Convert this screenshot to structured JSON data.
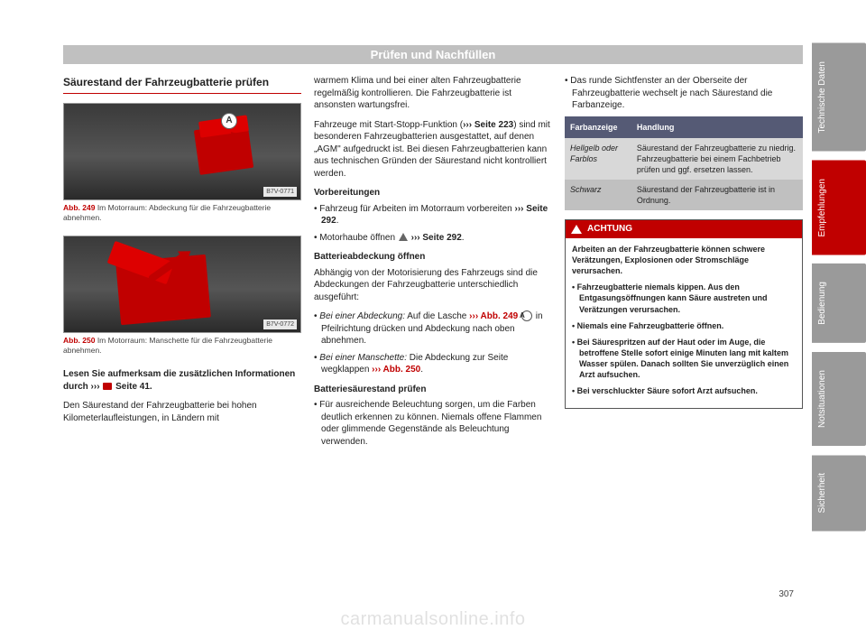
{
  "header": {
    "title": "Prüfen und Nachfüllen"
  },
  "col1": {
    "heading": "Säurestand der Fahrzeugbatterie prüfen",
    "fig1": {
      "num": "Abb. 249",
      "text": "Im Motorraum: Abdeckung für die Fahrzeugbatterie abnehmen.",
      "tag": "B7V-0771",
      "marker": "A"
    },
    "fig2": {
      "num": "Abb. 250",
      "text": "Im Motorraum: Manschette für die Fahrzeugbatterie abnehmen.",
      "tag": "B7V-0772"
    },
    "read_carefully_1": "Lesen Sie aufmerksam die zusätzlichen Informationen durch ››› ",
    "read_carefully_2": " Seite 41.",
    "p2": "Den Säurestand der Fahrzeugbatterie bei hohen Kilometerlaufleistungen, in Ländern mit"
  },
  "col2": {
    "p1": "warmem Klima und bei einer alten Fahrzeugbatterie regelmäßig kontrollieren. Die Fahrzeugbatterie ist ansonsten wartungsfrei.",
    "p2a": "Fahrzeuge mit Start-Stopp-Funktion (",
    "p2b": "››› Seite 223",
    "p2c": ") sind mit besonderen Fahrzeugbatterien ausgestattet, auf denen „AGM\" aufgedruckt ist. Bei diesen Fahrzeugbatterien kann aus technischen Gründen der Säurestand nicht kontrolliert werden.",
    "sub1": "Vorbereitungen",
    "b1a": "Fahrzeug für Arbeiten im Motorraum vorbereiten ",
    "b1b": "››› Seite 292",
    "b1c": ".",
    "b2a": "Motorhaube öffnen ",
    "b2b": " ››› Seite 292",
    "b2c": ".",
    "sub2": "Batterieabdeckung öffnen",
    "p3": "Abhängig von der Motorisierung des Fahrzeugs sind die Abdeckungen der Fahrzeugbatterie unterschiedlich ausgeführt:",
    "b3a": "Bei einer Abdeckung:",
    "b3b": " Auf die Lasche ",
    "b3c": "››› Abb. 249",
    "b3d": " in Pfeilrichtung drücken und Abdeckung nach oben abnehmen.",
    "b3marker": "A",
    "b4a": "Bei einer Manschette:",
    "b4b": " Die Abdeckung zur Seite wegklappen ",
    "b4c": "››› Abb. 250",
    "b4d": ".",
    "sub3": "Batteriesäurestand prüfen",
    "b5": "Für ausreichende Beleuchtung sorgen, um die Farben deutlich erkennen zu können. Niemals offene Flammen oder glimmende Gegenstände als Beleuchtung verwenden."
  },
  "col3": {
    "b1": "Das runde Sichtfenster an der Oberseite der Fahrzeugbatterie wechselt je nach Säurestand die Farbanzeige.",
    "table": {
      "h1": "Farbanzeige",
      "h2": "Handlung",
      "r1c1": "Hellgelb oder Farblos",
      "r1c2": "Säurestand der Fahrzeugbatterie zu niedrig. Fahrzeugbatterie bei einem Fachbetrieb prüfen und ggf. ersetzen lassen.",
      "r2c1": "Schwarz",
      "r2c2": "Säurestand der Fahrzeugbatterie ist in Ordnung."
    },
    "warn": {
      "title": "ACHTUNG",
      "lead": "Arbeiten an der Fahrzeugbatterie können schwere Verätzungen, Explosionen oder Stromschläge verursachen.",
      "b1": "Fahrzeugbatterie niemals kippen. Aus den Entgasungsöffnungen kann Säure austreten und Verätzungen verursachen.",
      "b2": "Niemals eine Fahrzeugbatterie öffnen.",
      "b3": "Bei Säurespritzen auf der Haut oder im Auge, die betroffene Stelle sofort einige Minuten lang mit kaltem Wasser spülen. Danach sollten Sie unverzüglich einen Arzt aufsuchen.",
      "b4": "Bei verschluckter Säure sofort Arzt aufsuchen."
    }
  },
  "page_number": "307",
  "tabs": {
    "t1": "Technische Daten",
    "t2": "Empfehlungen",
    "t3": "Bedienung",
    "t4": "Notsituationen",
    "t5": "Sicherheit"
  },
  "watermark": "carmanualsonline.info"
}
